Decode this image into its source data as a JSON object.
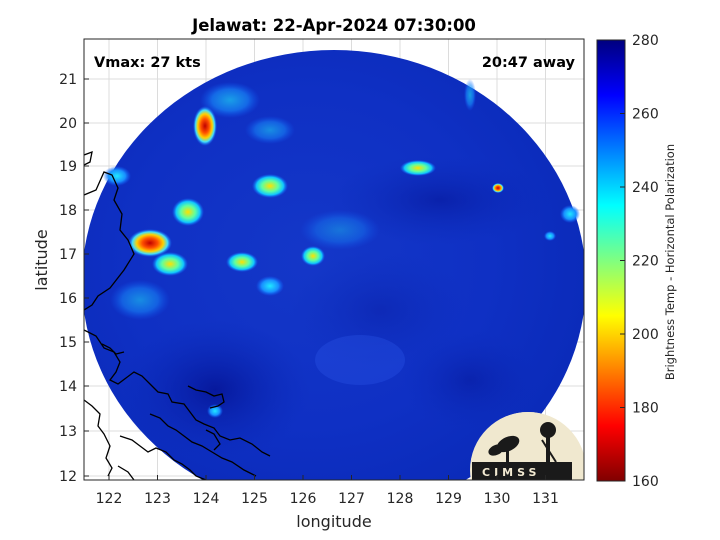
{
  "title": "Jelawat: 22-Apr-2024 07:30:00",
  "vmax_label": "Vmax: 27 kts",
  "away_label": "20:47 away",
  "xlabel": "longitude",
  "ylabel": "latitude",
  "colorbar_label": "Brightness Temp - Horizontal Polarization",
  "logo_text": "CIMSS",
  "x_ticks": [
    "122",
    "123",
    "124",
    "125",
    "126",
    "127",
    "128",
    "129",
    "130",
    "131"
  ],
  "y_ticks": [
    "12",
    "13",
    "14",
    "15",
    "16",
    "17",
    "18",
    "19",
    "20",
    "21"
  ],
  "colorbar_ticks": [
    "160",
    "180",
    "200",
    "220",
    "240",
    "260",
    "280"
  ],
  "map": {
    "lon_range": [
      121.5,
      131.8
    ],
    "lat_range": [
      11.9,
      21.8
    ],
    "grid": true,
    "colormap": "jet",
    "value_range": [
      160,
      280
    ]
  }
}
